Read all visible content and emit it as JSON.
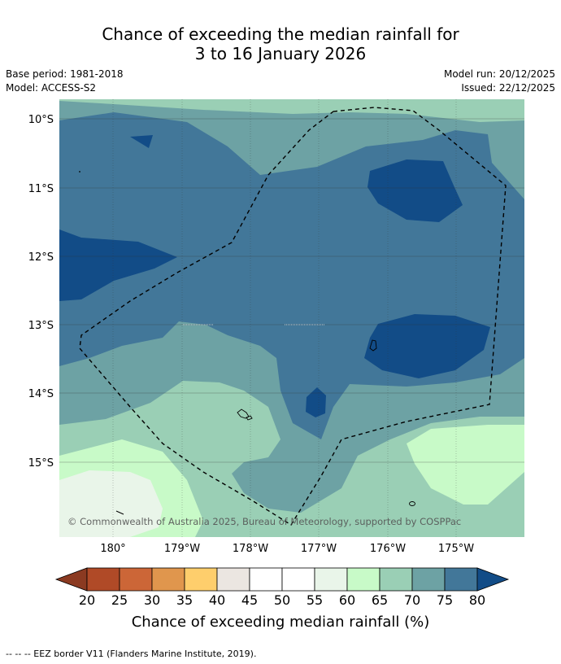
{
  "title_line1": "Chance of exceeding the median rainfall for",
  "title_line2": "3 to 16 January 2026",
  "base_period": "Base period: 1981-2018",
  "model": "Model: ACCESS-S2",
  "model_run": "Model run: 20/12/2025",
  "issued": "Issued: 22/12/2025",
  "copyright": "© Commonwealth of Australia 2025, Bureau of Meteorology, supported by COSPPac",
  "lat_labels": [
    "10°S",
    "11°S",
    "12°S",
    "13°S",
    "14°S",
    "15°S"
  ],
  "lon_labels": [
    "180°",
    "179°W",
    "178°W",
    "177°W",
    "176°W",
    "175°W"
  ],
  "colorbar": {
    "ticks": [
      "20",
      "25",
      "30",
      "35",
      "40",
      "45",
      "50",
      "55",
      "60",
      "65",
      "70",
      "75",
      "80"
    ],
    "colors": [
      "#b04a27",
      "#cc6637",
      "#e0964d",
      "#fece6c",
      "#ebe6e1",
      "#ffffff",
      "#ffffff",
      "#e9f5e9",
      "#c8fac8",
      "#9acfb5",
      "#6da2a4",
      "#427799",
      "#124c87"
    ],
    "under_color": "#8b3a21",
    "over_color": "#124c87",
    "label": "Chance of exceeding median rainfall (%)"
  },
  "footnote": "--  --  -- EEZ border V11 (Flanders Marine Institute, 2019)."
}
